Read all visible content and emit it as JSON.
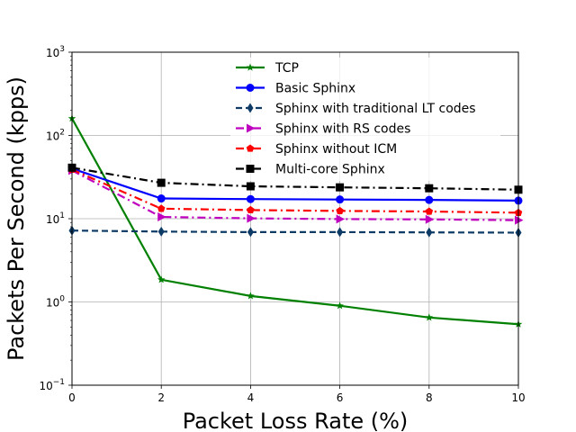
{
  "chart_data": {
    "type": "line",
    "xlabel": "Packet Loss Rate (%)",
    "ylabel": "Packets Per Second (kpps)",
    "x": [
      0,
      2,
      4,
      6,
      8,
      10
    ],
    "xlim": [
      0,
      10
    ],
    "x_ticks": [
      "0",
      "2",
      "4",
      "6",
      "8",
      "10"
    ],
    "ylim": [
      0.1,
      1000
    ],
    "y_scale": "log",
    "y_ticks": [
      {
        "base": "10",
        "exp": "−1",
        "value": 0.1
      },
      {
        "base": "10",
        "exp": "0",
        "value": 1
      },
      {
        "base": "10",
        "exp": "1",
        "value": 10
      },
      {
        "base": "10",
        "exp": "2",
        "value": 100
      },
      {
        "base": "10",
        "exp": "3",
        "value": 1000
      }
    ],
    "grid": true,
    "legend_position": "top-center",
    "series": [
      {
        "name": "TCP",
        "values": [
          160,
          1.85,
          1.18,
          0.9,
          0.65,
          0.54
        ],
        "color": "#008000",
        "dash": "solid",
        "marker": "star"
      },
      {
        "name": "Basic Sphinx",
        "values": [
          40,
          17.5,
          17.2,
          17,
          16.8,
          16.5
        ],
        "color": "#0000ff",
        "dash": "solid",
        "marker": "circle"
      },
      {
        "name": "Sphinx with traditional LT codes",
        "values": [
          7.2,
          7,
          6.9,
          6.9,
          6.85,
          6.8
        ],
        "color": "#0d3b66",
        "dash": "dashed",
        "marker": "diamond"
      },
      {
        "name": "Sphinx with RS codes",
        "values": [
          38,
          10.5,
          10.1,
          9.9,
          9.8,
          9.6
        ],
        "color": "#bf00bf",
        "dash": "dashdot",
        "marker": "triangle-right"
      },
      {
        "name": "Sphinx without ICM",
        "values": [
          39,
          13.2,
          12.7,
          12.4,
          12.2,
          11.8
        ],
        "color": "#ff0000",
        "dash": "dashdot",
        "marker": "pentagon"
      },
      {
        "name": "Multi-core Sphinx",
        "values": [
          41,
          27,
          24.5,
          23.8,
          23.2,
          22.3
        ],
        "color": "#000000",
        "dash": "dashdot",
        "marker": "square"
      }
    ]
  }
}
